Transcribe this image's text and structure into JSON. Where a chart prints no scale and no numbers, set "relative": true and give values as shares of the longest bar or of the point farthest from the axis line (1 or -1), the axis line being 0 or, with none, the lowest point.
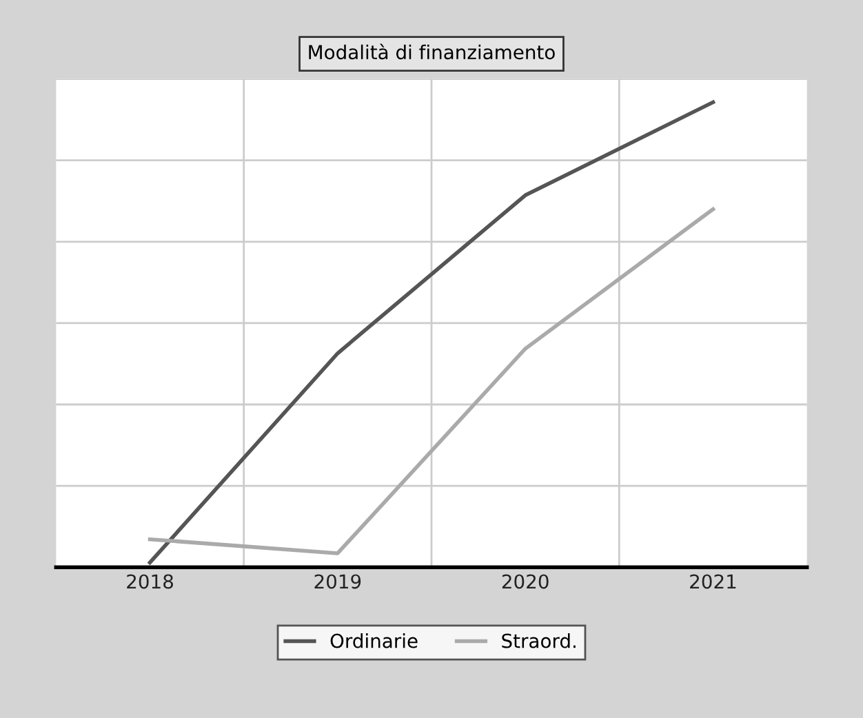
{
  "chart_data": {
    "type": "line",
    "title": "Modalità di finanziamento",
    "relative": true,
    "categories": [
      "2018",
      "2019",
      "2020",
      "2021"
    ],
    "series": [
      {
        "name": "Ordinarie",
        "color": "#555555",
        "values": [
          0.01,
          0.46,
          0.8,
          1
        ]
      },
      {
        "name": "Straord.",
        "color": "#aaaaaa",
        "values": [
          0.06,
          0.03,
          0.47,
          0.77
        ]
      }
    ],
    "grid": true,
    "legend": "bottom",
    "marker": "none",
    "line_style": "solid"
  }
}
